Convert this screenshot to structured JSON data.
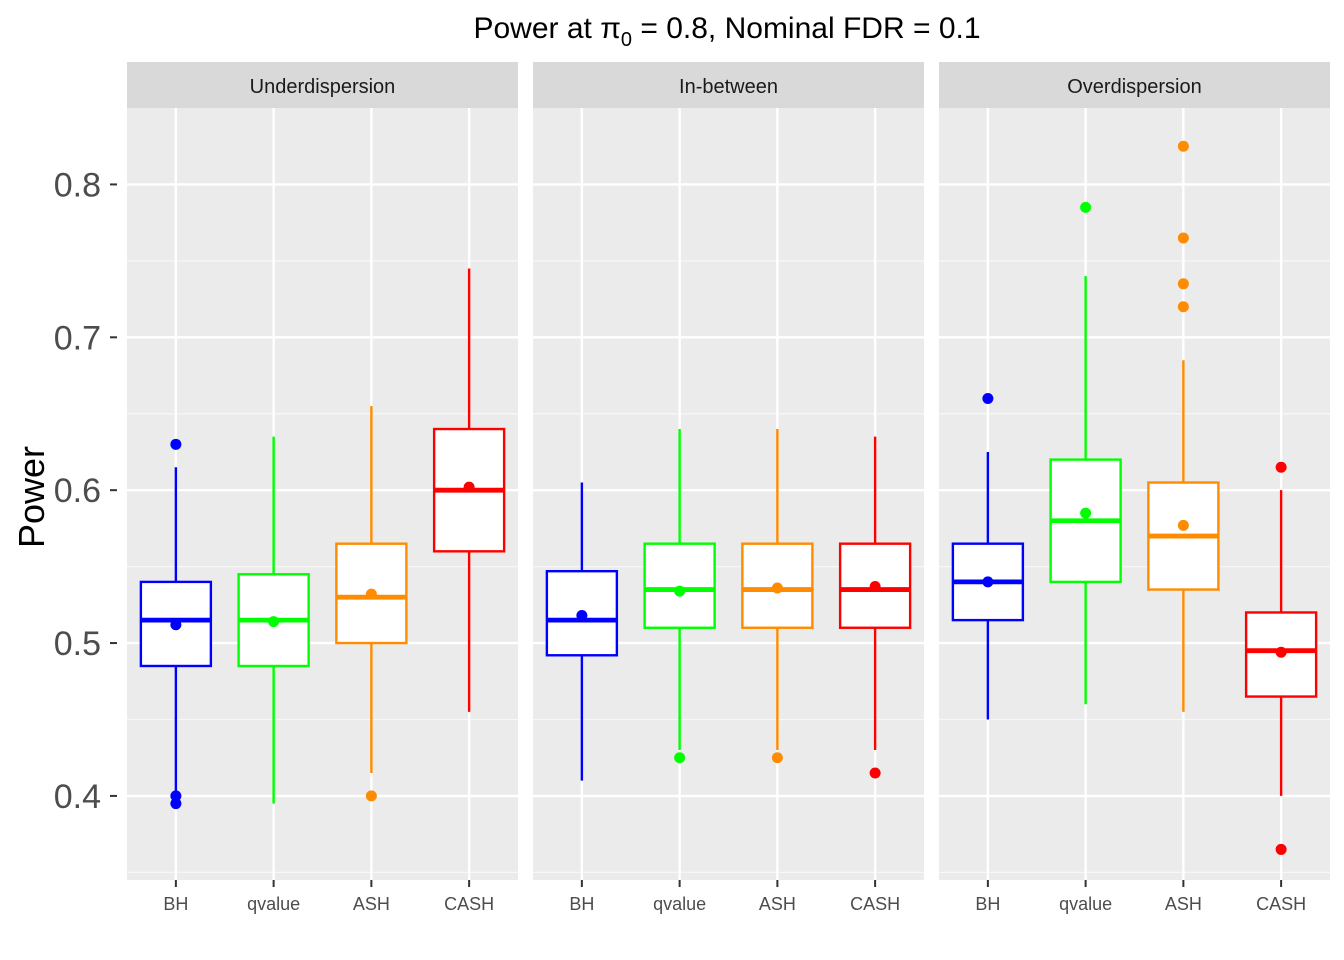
{
  "chart_data": {
    "type": "box",
    "title": "Power at π₀ = 0.8, Nominal FDR = 0.1",
    "title_parts": {
      "prefix": "Power at ",
      "symbol": "π",
      "subscript": "0",
      "suffix": " = 0.8, Nominal FDR = 0.1"
    },
    "ylabel": "Power",
    "xlabel": "",
    "ylim": [
      0.345,
      0.85
    ],
    "yticks": [
      0.4,
      0.5,
      0.6,
      0.7,
      0.8
    ],
    "ytick_labels": [
      "0.4",
      "0.5",
      "0.6",
      "0.7",
      "0.8"
    ],
    "grid": true,
    "legend": "none",
    "categories": [
      "BH",
      "qvalue",
      "ASH",
      "CASH"
    ],
    "colors": {
      "BH": "#0000ff",
      "qvalue": "#00ff00",
      "ASH": "#ff8c00",
      "CASH": "#ff0000"
    },
    "panels": [
      {
        "name": "Underdispersion",
        "boxes": [
          {
            "category": "BH",
            "whisker_low": 0.4,
            "q1": 0.485,
            "median": 0.515,
            "q3": 0.54,
            "whisker_high": 0.615,
            "mean": 0.512,
            "outliers": [
              0.63,
              0.4,
              0.395
            ]
          },
          {
            "category": "qvalue",
            "whisker_low": 0.395,
            "q1": 0.485,
            "median": 0.515,
            "q3": 0.545,
            "whisker_high": 0.635,
            "mean": 0.514,
            "outliers": []
          },
          {
            "category": "ASH",
            "whisker_low": 0.415,
            "q1": 0.5,
            "median": 0.53,
            "q3": 0.565,
            "whisker_high": 0.655,
            "mean": 0.532,
            "outliers": [
              0.4
            ]
          },
          {
            "category": "CASH",
            "whisker_low": 0.455,
            "q1": 0.56,
            "median": 0.6,
            "q3": 0.64,
            "whisker_high": 0.745,
            "mean": 0.602,
            "outliers": []
          }
        ]
      },
      {
        "name": "In-between",
        "boxes": [
          {
            "category": "BH",
            "whisker_low": 0.41,
            "q1": 0.492,
            "median": 0.515,
            "q3": 0.547,
            "whisker_high": 0.605,
            "mean": 0.518,
            "outliers": []
          },
          {
            "category": "qvalue",
            "whisker_low": 0.43,
            "q1": 0.51,
            "median": 0.535,
            "q3": 0.565,
            "whisker_high": 0.64,
            "mean": 0.534,
            "outliers": [
              0.425
            ]
          },
          {
            "category": "ASH",
            "whisker_low": 0.43,
            "q1": 0.51,
            "median": 0.535,
            "q3": 0.565,
            "whisker_high": 0.64,
            "mean": 0.536,
            "outliers": [
              0.425
            ]
          },
          {
            "category": "CASH",
            "whisker_low": 0.43,
            "q1": 0.51,
            "median": 0.535,
            "q3": 0.565,
            "whisker_high": 0.635,
            "mean": 0.537,
            "outliers": [
              0.415
            ]
          }
        ]
      },
      {
        "name": "Overdispersion",
        "boxes": [
          {
            "category": "BH",
            "whisker_low": 0.45,
            "q1": 0.515,
            "median": 0.54,
            "q3": 0.565,
            "whisker_high": 0.625,
            "mean": 0.54,
            "outliers": [
              0.66
            ]
          },
          {
            "category": "qvalue",
            "whisker_low": 0.46,
            "q1": 0.54,
            "median": 0.58,
            "q3": 0.62,
            "whisker_high": 0.74,
            "mean": 0.585,
            "outliers": [
              0.785
            ]
          },
          {
            "category": "ASH",
            "whisker_low": 0.455,
            "q1": 0.535,
            "median": 0.57,
            "q3": 0.605,
            "whisker_high": 0.685,
            "mean": 0.577,
            "outliers": [
              0.825,
              0.765,
              0.735,
              0.72
            ]
          },
          {
            "category": "CASH",
            "whisker_low": 0.4,
            "q1": 0.465,
            "median": 0.495,
            "q3": 0.52,
            "whisker_high": 0.6,
            "mean": 0.494,
            "outliers": [
              0.615,
              0.365
            ]
          }
        ]
      }
    ]
  }
}
